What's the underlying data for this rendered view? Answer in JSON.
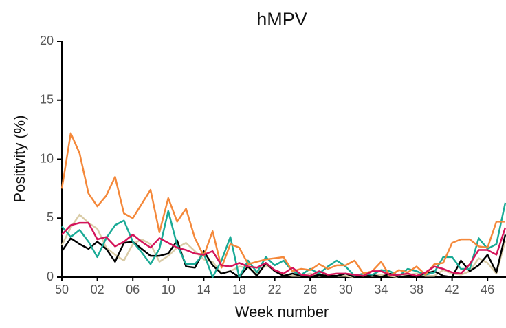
{
  "chart_data": {
    "type": "line",
    "title": "hMPV",
    "xlabel": "Week number",
    "ylabel": "Positivity (%)",
    "categories": [
      "50",
      null,
      null,
      null,
      "02",
      null,
      null,
      null,
      "06",
      null,
      null,
      null,
      "10",
      null,
      null,
      null,
      "14",
      null,
      null,
      null,
      "18",
      null,
      null,
      null,
      "22",
      null,
      null,
      null,
      "26",
      null,
      null,
      null,
      "30",
      null,
      null,
      null,
      "34",
      null,
      null,
      null,
      "38",
      null,
      null,
      null,
      "42",
      null,
      null,
      null,
      "46",
      null,
      null
    ],
    "ylim": [
      0,
      20
    ],
    "yticks": [
      0,
      5,
      10,
      15,
      20
    ],
    "series": [
      {
        "color": "#d9cba6",
        "values": [
          2.7,
          4.2,
          5.3,
          4.6,
          4.1,
          2.5,
          1.9,
          1.4,
          2.8,
          3.2,
          2.8,
          1.3,
          1.8,
          2.5,
          2.9,
          2.2,
          1.5,
          1.3,
          0.3,
          0.5,
          0.9,
          0.8,
          0.3,
          1.0,
          0.6,
          0.2,
          0.1,
          0.1,
          0.3,
          0.1,
          0.2,
          0.1,
          0.1,
          0.0,
          0.2,
          0.1,
          0.2,
          0.1,
          0.0,
          0.2,
          0.3,
          0.1,
          0.1,
          0.6,
          0.3,
          0.2,
          0.5,
          1.6,
          1.2,
          0.3,
          3.1
        ]
      },
      {
        "color": "#000000",
        "values": [
          2.2,
          3.3,
          2.8,
          2.4,
          3.0,
          2.4,
          1.3,
          2.9,
          3.0,
          2.4,
          1.8,
          1.8,
          2.0,
          3.1,
          0.9,
          0.8,
          2.2,
          1.0,
          0.3,
          0.5,
          0.0,
          0.9,
          0.1,
          1.2,
          0.5,
          0.1,
          0.3,
          0.1,
          0.0,
          0.2,
          0.1,
          0.1,
          0.3,
          0.0,
          0.0,
          0.2,
          0.0,
          0.3,
          0.0,
          0.1,
          0.1,
          0.3,
          0.5,
          0.1,
          0.0,
          1.4,
          0.5,
          1.0,
          1.9,
          0.4,
          3.6
        ]
      },
      {
        "color": "#1aaa96",
        "values": [
          4.3,
          3.4,
          4.0,
          3.0,
          1.7,
          3.3,
          4.4,
          4.8,
          3.0,
          2.1,
          1.1,
          2.4,
          5.6,
          2.7,
          1.1,
          1.1,
          2.0,
          0.0,
          1.4,
          3.4,
          0.0,
          1.4,
          0.4,
          1.7,
          1.0,
          1.4,
          0.5,
          0.2,
          0.7,
          0.3,
          0.9,
          1.4,
          0.9,
          0.1,
          0.3,
          0.2,
          0.6,
          0.5,
          0.1,
          0.7,
          0.5,
          0.2,
          0.4,
          1.7,
          1.7,
          0.7,
          0.7,
          3.3,
          2.4,
          2.8,
          6.3
        ]
      },
      {
        "color": "#f4883a",
        "values": [
          7.5,
          12.2,
          10.5,
          7.1,
          6.0,
          6.9,
          8.5,
          5.4,
          5.0,
          6.2,
          7.4,
          3.8,
          6.7,
          4.7,
          5.8,
          3.3,
          1.8,
          3.9,
          0.8,
          2.8,
          2.5,
          1.1,
          1.3,
          1.5,
          1.6,
          1.7,
          0.5,
          0.7,
          0.6,
          1.1,
          0.7,
          1.0,
          1.0,
          1.4,
          0.3,
          0.5,
          1.3,
          0.1,
          0.6,
          0.4,
          0.9,
          0.2,
          1.1,
          1.2,
          2.9,
          3.2,
          3.2,
          2.6,
          2.5,
          4.7,
          4.7
        ]
      },
      {
        "color": "#d4145a",
        "values": [
          3.6,
          4.4,
          4.6,
          4.6,
          3.2,
          3.4,
          2.6,
          3.0,
          3.6,
          3.0,
          2.5,
          3.3,
          2.9,
          2.5,
          2.3,
          2.0,
          1.9,
          2.2,
          1.0,
          0.9,
          1.2,
          0.9,
          0.8,
          1.2,
          0.6,
          0.3,
          0.8,
          0.2,
          0.1,
          0.5,
          0.2,
          0.3,
          0.3,
          0.2,
          0.1,
          0.5,
          0.5,
          0.2,
          0.2,
          0.3,
          0.1,
          0.4,
          0.9,
          0.7,
          0.4,
          0.3,
          1.1,
          2.3,
          2.3,
          1.9,
          4.2
        ]
      }
    ]
  }
}
